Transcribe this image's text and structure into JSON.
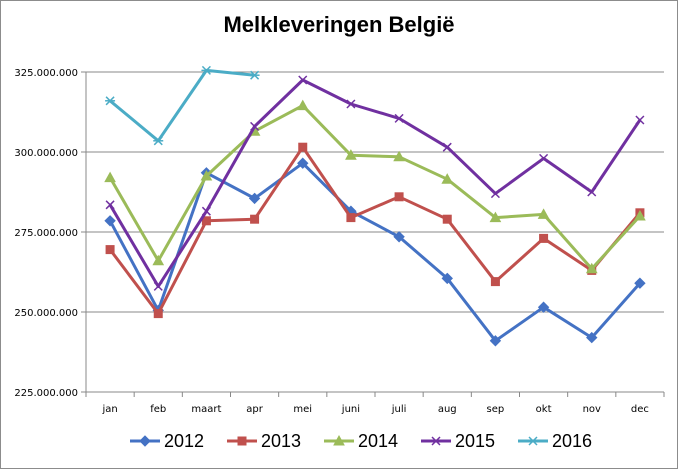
{
  "chart_data": {
    "type": "line",
    "title": "Melkleveringen België",
    "categories": [
      "jan",
      "feb",
      "maart",
      "apr",
      "mei",
      "juni",
      "juli",
      "aug",
      "sep",
      "okt",
      "nov",
      "dec"
    ],
    "ylim": [
      225000000,
      325000000
    ],
    "yticks": [
      225000000,
      250000000,
      275000000,
      300000000,
      325000000
    ],
    "ytick_labels": [
      "225.000.000",
      "250.000.000",
      "275.000.000",
      "300.000.000",
      "325.000.000"
    ],
    "grid": true,
    "legend_position": "bottom",
    "series": [
      {
        "name": "2012",
        "color": "#4472C4",
        "marker": "diamond",
        "values": [
          278500000,
          250500000,
          293500000,
          285500000,
          296500000,
          281500000,
          273500000,
          260500000,
          241000000,
          251500000,
          242000000,
          259000000
        ]
      },
      {
        "name": "2013",
        "color": "#C0504D",
        "marker": "square",
        "values": [
          269500000,
          249500000,
          278500000,
          279000000,
          301500000,
          279500000,
          286000000,
          279000000,
          259500000,
          273000000,
          263000000,
          281000000
        ]
      },
      {
        "name": "2014",
        "color": "#9BBB59",
        "marker": "triangle",
        "values": [
          292000000,
          266000000,
          292500000,
          306500000,
          314500000,
          299000000,
          298500000,
          291500000,
          279500000,
          280500000,
          263500000,
          280000000
        ]
      },
      {
        "name": "2015",
        "color": "#7030A0",
        "marker": "x",
        "values": [
          283500000,
          258000000,
          281500000,
          308000000,
          322500000,
          315000000,
          310500000,
          301500000,
          287000000,
          298000000,
          287500000,
          310000000
        ]
      },
      {
        "name": "2016",
        "color": "#4BACC6",
        "marker": "star",
        "values": [
          316000000,
          303500000,
          325500000,
          324000000,
          null,
          null,
          null,
          null,
          null,
          null,
          null,
          null
        ]
      }
    ]
  }
}
